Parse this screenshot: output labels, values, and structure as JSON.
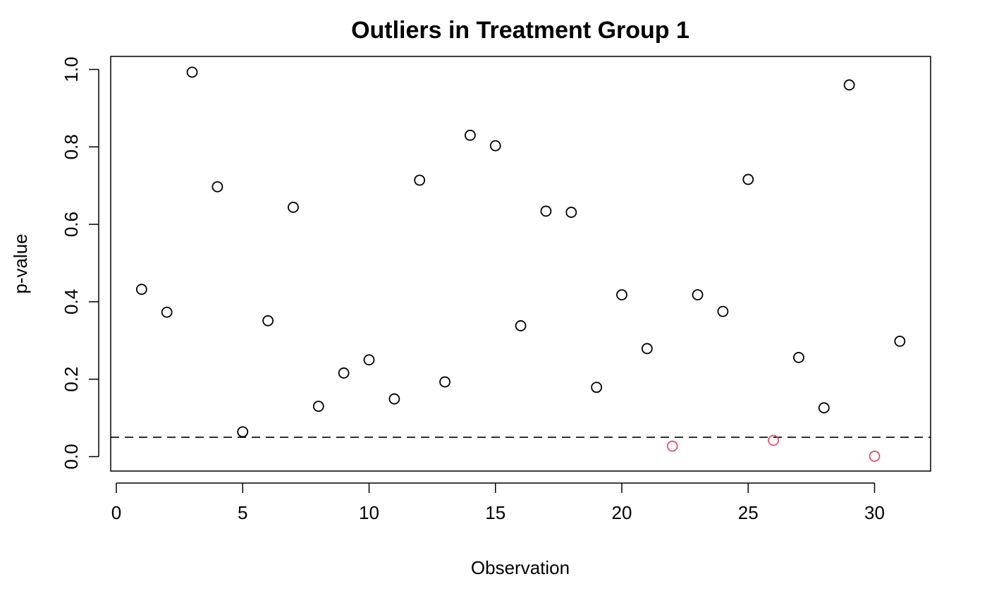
{
  "chart_data": {
    "type": "scatter",
    "title": "Outliers in Treatment Group 1",
    "xlabel": "Observation",
    "ylabel": "p-value",
    "xlim": [
      0,
      32
    ],
    "ylim": [
      0,
      1
    ],
    "x_ticks": [
      0,
      5,
      10,
      15,
      20,
      25,
      30
    ],
    "y_ticks": [
      0.0,
      0.2,
      0.4,
      0.6,
      0.8,
      1.0
    ],
    "x_tick_labels": [
      "0",
      "5",
      "10",
      "15",
      "20",
      "25",
      "30"
    ],
    "y_tick_labels": [
      "0.0",
      "0.2",
      "0.4",
      "0.6",
      "0.8",
      "1.0"
    ],
    "grid": false,
    "reference_line": {
      "y": 0.05,
      "style": "dashed",
      "color": "#000000"
    },
    "colors": {
      "normal": "#000000",
      "outlier": "#DF536B"
    },
    "points": [
      {
        "x": 1,
        "y": 0.432,
        "outlier": false
      },
      {
        "x": 2,
        "y": 0.373,
        "outlier": false
      },
      {
        "x": 3,
        "y": 0.993,
        "outlier": false
      },
      {
        "x": 4,
        "y": 0.697,
        "outlier": false
      },
      {
        "x": 5,
        "y": 0.064,
        "outlier": false
      },
      {
        "x": 6,
        "y": 0.351,
        "outlier": false
      },
      {
        "x": 7,
        "y": 0.644,
        "outlier": false
      },
      {
        "x": 8,
        "y": 0.13,
        "outlier": false
      },
      {
        "x": 9,
        "y": 0.216,
        "outlier": false
      },
      {
        "x": 10,
        "y": 0.25,
        "outlier": false
      },
      {
        "x": 11,
        "y": 0.149,
        "outlier": false
      },
      {
        "x": 12,
        "y": 0.714,
        "outlier": false
      },
      {
        "x": 13,
        "y": 0.193,
        "outlier": false
      },
      {
        "x": 14,
        "y": 0.83,
        "outlier": false
      },
      {
        "x": 15,
        "y": 0.803,
        "outlier": false
      },
      {
        "x": 16,
        "y": 0.338,
        "outlier": false
      },
      {
        "x": 17,
        "y": 0.634,
        "outlier": false
      },
      {
        "x": 18,
        "y": 0.631,
        "outlier": false
      },
      {
        "x": 19,
        "y": 0.179,
        "outlier": false
      },
      {
        "x": 20,
        "y": 0.418,
        "outlier": false
      },
      {
        "x": 21,
        "y": 0.279,
        "outlier": false
      },
      {
        "x": 22,
        "y": 0.027,
        "outlier": true
      },
      {
        "x": 23,
        "y": 0.418,
        "outlier": false
      },
      {
        "x": 24,
        "y": 0.375,
        "outlier": false
      },
      {
        "x": 25,
        "y": 0.716,
        "outlier": false
      },
      {
        "x": 26,
        "y": 0.042,
        "outlier": true
      },
      {
        "x": 27,
        "y": 0.256,
        "outlier": false
      },
      {
        "x": 28,
        "y": 0.126,
        "outlier": false
      },
      {
        "x": 29,
        "y": 0.96,
        "outlier": false
      },
      {
        "x": 30,
        "y": 0.001,
        "outlier": true
      },
      {
        "x": 31,
        "y": 0.298,
        "outlier": false
      }
    ]
  }
}
